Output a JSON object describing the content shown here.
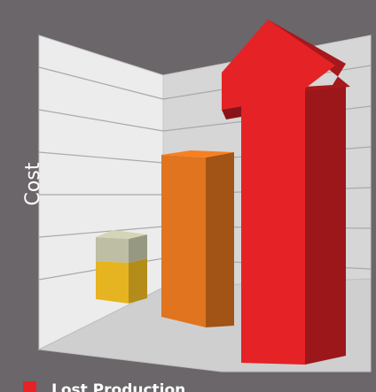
{
  "chart_data": {
    "type": "bar",
    "title": "",
    "xlabel": "",
    "ylabel": "Cost",
    "grid": true,
    "legend_position": "bottom-left",
    "series": [
      {
        "name": "Lost Production",
        "color": "#e52226"
      }
    ],
    "bars": [
      {
        "segments": [
          {
            "color": "#e6b321"
          },
          {
            "color": "#bdbea3"
          }
        ]
      },
      {
        "segments": [
          {
            "color": "#e0741f"
          }
        ]
      },
      {
        "segments": [
          {
            "color": "#e52226"
          }
        ],
        "shape": "arrow-up"
      }
    ]
  }
}
